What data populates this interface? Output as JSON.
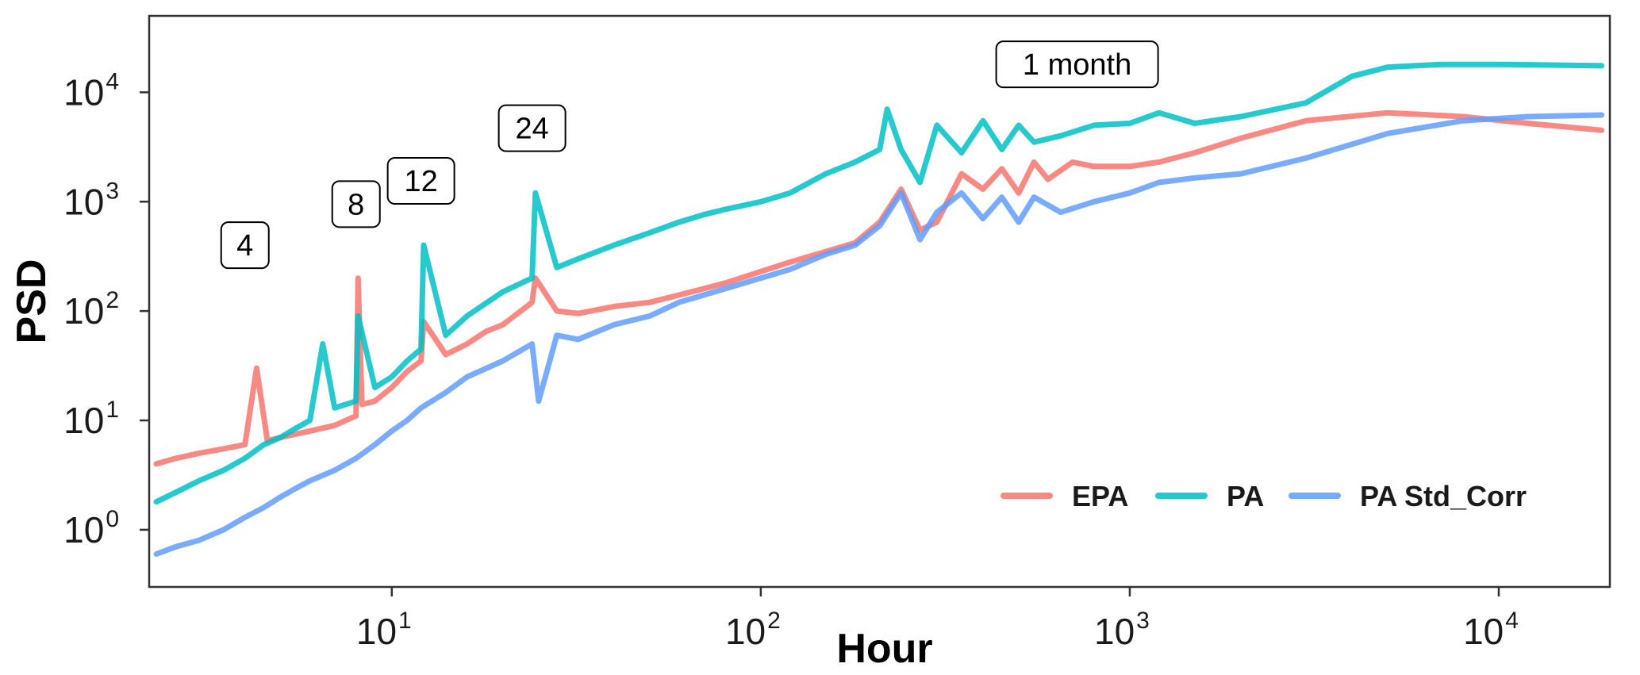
{
  "chart_data": {
    "type": "line",
    "xlabel": "Hour",
    "ylabel": "PSD",
    "x_scale": "log",
    "y_scale": "log",
    "xlim": [
      2.2,
      20000
    ],
    "ylim": [
      0.3,
      50000
    ],
    "x_ticks": [
      {
        "value": 10,
        "base": "10",
        "exp": "1"
      },
      {
        "value": 100,
        "base": "10",
        "exp": "2"
      },
      {
        "value": 1000,
        "base": "10",
        "exp": "3"
      },
      {
        "value": 10000,
        "base": "10",
        "exp": "4"
      }
    ],
    "y_ticks": [
      {
        "value": 1,
        "base": "10",
        "exp": "0"
      },
      {
        "value": 10,
        "base": "10",
        "exp": "1"
      },
      {
        "value": 100,
        "base": "10",
        "exp": "2"
      },
      {
        "value": 1000,
        "base": "10",
        "exp": "3"
      },
      {
        "value": 10000,
        "base": "10",
        "exp": "4"
      }
    ],
    "grid": false,
    "legend_position": "bottom-right",
    "annotations": [
      {
        "text": "4",
        "x": 4,
        "y": 400
      },
      {
        "text": "8",
        "x": 8,
        "y": 950
      },
      {
        "text": "12",
        "x": 12,
        "y": 1550
      },
      {
        "text": "24",
        "x": 24,
        "y": 4700
      },
      {
        "text": "1 month",
        "x": 720,
        "y": 18000
      }
    ],
    "series": [
      {
        "name": "EPA",
        "color": "#F8766D",
        "x": [
          2.3,
          2.6,
          3,
          3.5,
          4,
          4.3,
          4.6,
          5,
          6,
          7,
          8,
          8.1,
          8.3,
          9,
          10,
          11,
          12,
          12.2,
          14,
          16,
          18,
          20,
          24,
          24.5,
          28,
          32,
          40,
          50,
          60,
          70,
          80,
          100,
          120,
          150,
          180,
          210,
          240,
          270,
          300,
          350,
          400,
          450,
          500,
          550,
          600,
          700,
          800,
          1000,
          1200,
          1500,
          2000,
          3000,
          5000,
          8000,
          12000,
          19000
        ],
        "y": [
          4,
          4.5,
          5,
          5.5,
          6,
          30,
          6.5,
          7,
          8,
          9,
          11,
          200,
          14,
          15,
          20,
          28,
          35,
          80,
          40,
          50,
          65,
          75,
          120,
          200,
          100,
          95,
          110,
          120,
          140,
          160,
          180,
          230,
          280,
          350,
          420,
          650,
          1300,
          550,
          650,
          1800,
          1300,
          2000,
          1200,
          2300,
          1600,
          2300,
          2100,
          2100,
          2300,
          2800,
          3800,
          5500,
          6500,
          6000,
          5200,
          4500
        ]
      },
      {
        "name": "PA",
        "color": "#00BFC4",
        "x": [
          2.3,
          2.6,
          3,
          3.5,
          4,
          4.5,
          5,
          5.5,
          6,
          6.5,
          7,
          8,
          8.1,
          9,
          10,
          11,
          12,
          12.2,
          14,
          16,
          20,
          24,
          24.5,
          28,
          32,
          40,
          50,
          60,
          70,
          80,
          100,
          120,
          150,
          180,
          210,
          220,
          240,
          270,
          300,
          350,
          400,
          450,
          500,
          550,
          650,
          800,
          1000,
          1200,
          1500,
          2000,
          3000,
          4000,
          5000,
          7000,
          10000,
          19000
        ],
        "y": [
          1.8,
          2.2,
          2.8,
          3.5,
          4.5,
          6,
          7,
          8.5,
          10,
          50,
          13,
          15,
          90,
          20,
          25,
          35,
          45,
          400,
          60,
          90,
          150,
          200,
          1200,
          250,
          300,
          400,
          520,
          650,
          760,
          850,
          1000,
          1200,
          1800,
          2300,
          3000,
          7000,
          3000,
          1500,
          5000,
          2800,
          5500,
          3000,
          5000,
          3500,
          4000,
          5000,
          5200,
          6500,
          5200,
          6000,
          8000,
          14000,
          17000,
          18000,
          18000,
          17500
        ]
      },
      {
        "name": "PA Std_Corr",
        "color": "#619CFF",
        "x": [
          2.3,
          2.6,
          3,
          3.5,
          4,
          4.5,
          5,
          5.5,
          6,
          7,
          8,
          9,
          10,
          11,
          12,
          14,
          16,
          20,
          24,
          25,
          28,
          32,
          40,
          50,
          60,
          70,
          80,
          100,
          120,
          150,
          180,
          210,
          240,
          270,
          300,
          350,
          400,
          450,
          500,
          550,
          650,
          800,
          1000,
          1200,
          1500,
          2000,
          3000,
          5000,
          8000,
          12000,
          19000
        ],
        "y": [
          0.6,
          0.7,
          0.8,
          1,
          1.3,
          1.6,
          2,
          2.4,
          2.8,
          3.5,
          4.5,
          6,
          8,
          10,
          13,
          18,
          25,
          35,
          50,
          15,
          60,
          55,
          75,
          90,
          120,
          140,
          160,
          200,
          240,
          330,
          400,
          600,
          1200,
          450,
          800,
          1200,
          700,
          1100,
          650,
          1100,
          800,
          1000,
          1200,
          1500,
          1650,
          1800,
          2500,
          4200,
          5500,
          6000,
          6200
        ]
      }
    ]
  }
}
